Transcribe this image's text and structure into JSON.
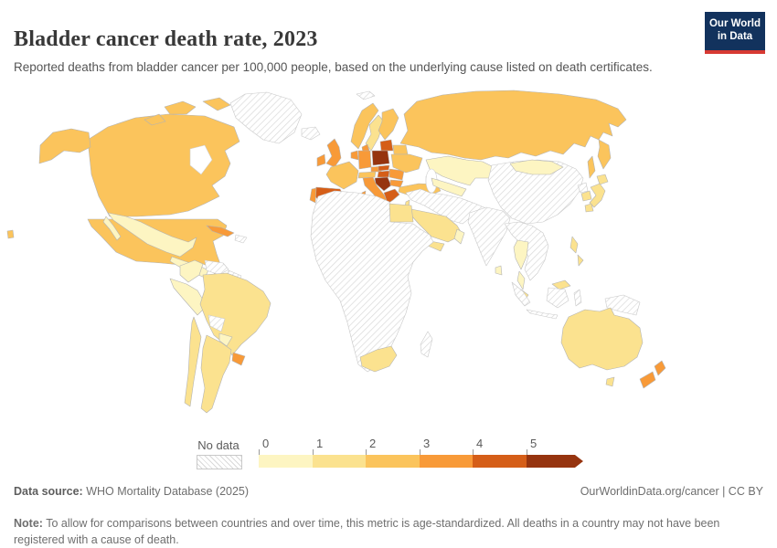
{
  "header": {
    "title": "Bladder cancer death rate, 2023",
    "subtitle": "Reported deaths from bladder cancer per 100,000 people, based on the underlying cause listed on death certificates."
  },
  "logo": {
    "line1": "Our World",
    "line2": "in Data",
    "background": "#12325d",
    "accent": "#d73a33"
  },
  "legend": {
    "no_data_label": "No data",
    "ticks": [
      "0",
      "1",
      "2",
      "3",
      "4",
      "5"
    ]
  },
  "footer": {
    "source_label": "Data source:",
    "source_text": " WHO Mortality Database (2025)",
    "right_text": "OurWorldinData.org/cancer | CC BY",
    "note_label": "Note:",
    "note_text": " To allow for comparisons between countries and over time, this metric is age-standardized. All deaths in a country may not have been registered with a cause of death."
  },
  "chart_data": {
    "type": "heatmap",
    "subtype": "choropleth-world-map",
    "title": "Bladder cancer death rate, 2023",
    "unit": "deaths per 100,000 people (age-standardized)",
    "legend_bins": [
      {
        "range": "0-1",
        "color": "#fdf5c2"
      },
      {
        "range": "1-2",
        "color": "#fbe28f"
      },
      {
        "range": "2-3",
        "color": "#fbc45c"
      },
      {
        "range": "3-4",
        "color": "#f89a38"
      },
      {
        "range": "4-5",
        "color": "#d55e18"
      },
      {
        "range": "5+",
        "color": "#96340f"
      },
      {
        "range": "no-data",
        "pattern": "hatched-gray"
      }
    ],
    "regions": {
      "greenland": {
        "label": "Greenland",
        "bin": "no-data"
      },
      "iceland": {
        "label": "Iceland",
        "bin": "no-data"
      },
      "svalbard": {
        "label": "Svalbard",
        "bin": "no-data"
      },
      "canada": {
        "label": "Canada",
        "bin": "2-3"
      },
      "usa": {
        "label": "United States",
        "bin": "2-3"
      },
      "mexico": {
        "label": "Mexico",
        "bin": "0-1"
      },
      "central-america": {
        "label": "Central America",
        "bin": "0-1"
      },
      "cuba": {
        "label": "Cuba",
        "bin": "3-4"
      },
      "hispaniola": {
        "label": "Haiti / Dominican Republic",
        "bin": "no-data"
      },
      "colombia": {
        "label": "Colombia",
        "bin": "0-1"
      },
      "venezuela": {
        "label": "Venezuela",
        "bin": "no-data"
      },
      "guyanas": {
        "label": "Guyana / Suriname",
        "bin": "no-data"
      },
      "peru-ecuador": {
        "label": "Peru / Ecuador",
        "bin": "0-1"
      },
      "brazil": {
        "label": "Brazil",
        "bin": "1-2"
      },
      "bolivia": {
        "label": "Bolivia",
        "bin": "no-data"
      },
      "paraguay": {
        "label": "Paraguay",
        "bin": "0-1"
      },
      "uruguay": {
        "label": "Uruguay",
        "bin": "3-4"
      },
      "argentina": {
        "label": "Argentina",
        "bin": "1-2"
      },
      "chile": {
        "label": "Chile",
        "bin": "1-2"
      },
      "uk": {
        "label": "United Kingdom",
        "bin": "3-4"
      },
      "ireland": {
        "label": "Ireland",
        "bin": "3-4"
      },
      "norway": {
        "label": "Norway",
        "bin": "2-3"
      },
      "sweden": {
        "label": "Sweden",
        "bin": "1-2"
      },
      "finland": {
        "label": "Finland",
        "bin": "2-3"
      },
      "denmark": {
        "label": "Denmark",
        "bin": "3-4"
      },
      "baltics": {
        "label": "Baltic states",
        "bin": "4-5"
      },
      "belarus": {
        "label": "Belarus",
        "bin": "2-3"
      },
      "poland": {
        "label": "Poland",
        "bin": "5+"
      },
      "germany": {
        "label": "Germany",
        "bin": "3-4"
      },
      "benelux": {
        "label": "Belgium / Netherlands",
        "bin": "3-4"
      },
      "france": {
        "label": "France",
        "bin": "2-3"
      },
      "spain": {
        "label": "Spain",
        "bin": "4-5"
      },
      "portugal": {
        "label": "Portugal",
        "bin": "3-4"
      },
      "czechia": {
        "label": "Czechia",
        "bin": "3-4"
      },
      "alpine": {
        "label": "Austria / Switzerland",
        "bin": "2-3"
      },
      "italy": {
        "label": "Italy",
        "bin": "3-4"
      },
      "slovakia": {
        "label": "Slovakia",
        "bin": "4-5"
      },
      "hungary": {
        "label": "Hungary",
        "bin": "4-5"
      },
      "balkans": {
        "label": "Serbia / Croatia / Bosnia",
        "bin": "5+"
      },
      "greece": {
        "label": "Greece",
        "bin": "4-5"
      },
      "romania": {
        "label": "Romania",
        "bin": "3-4"
      },
      "bulgaria": {
        "label": "Bulgaria",
        "bin": "3-4"
      },
      "ukraine": {
        "label": "Ukraine",
        "bin": "2-3"
      },
      "turkey": {
        "label": "Turkey",
        "bin": "2-3"
      },
      "caucasus": {
        "label": "Georgia / Azerbaijan",
        "bin": "no-data"
      },
      "armenia": {
        "label": "Armenia",
        "bin": "5+"
      },
      "russia": {
        "label": "Russia",
        "bin": "2-3"
      },
      "kazakhstan": {
        "label": "Kazakhstan",
        "bin": "0-1"
      },
      "central-asia": {
        "label": "Uzbekistan / Turkmenistan",
        "bin": "0-1"
      },
      "kyrgyzstan": {
        "label": "Kyrgyzstan",
        "bin": "2-3"
      },
      "middle-east": {
        "label": "Iran / Iraq / Syria / Afghanistan / Pakistan",
        "bin": "no-data"
      },
      "israel": {
        "label": "Israel",
        "bin": "1-2"
      },
      "saudi-arabia": {
        "label": "Saudi Arabia",
        "bin": "1-2"
      },
      "yemen": {
        "label": "Yemen",
        "bin": "1-2"
      },
      "oman": {
        "label": "Oman",
        "bin": "0-1"
      },
      "egypt": {
        "label": "Egypt",
        "bin": "1-2"
      },
      "africa": {
        "label": "Africa (most countries)",
        "bin": "no-data"
      },
      "south-africa": {
        "label": "South Africa",
        "bin": "1-2"
      },
      "madagascar": {
        "label": "Madagascar",
        "bin": "no-data"
      },
      "india": {
        "label": "India",
        "bin": "no-data"
      },
      "sri-lanka": {
        "label": "Sri Lanka",
        "bin": "0-1"
      },
      "china": {
        "label": "China",
        "bin": "no-data"
      },
      "mongolia": {
        "label": "Mongolia",
        "bin": "0-1"
      },
      "north-korea": {
        "label": "North Korea",
        "bin": "no-data"
      },
      "south-korea": {
        "label": "South Korea",
        "bin": "1-2"
      },
      "japan": {
        "label": "Japan",
        "bin": "1-2"
      },
      "se-asia": {
        "label": "Myanmar / Laos / Vietnam / Cambodia",
        "bin": "no-data"
      },
      "thailand": {
        "label": "Thailand",
        "bin": "0-1"
      },
      "malaysia": {
        "label": "Malaysia",
        "bin": "1-2"
      },
      "philippines": {
        "label": "Philippines",
        "bin": "1-2"
      },
      "indonesia": {
        "label": "Indonesia",
        "bin": "no-data"
      },
      "new-guinea": {
        "label": "Papua New Guinea",
        "bin": "no-data"
      },
      "australia": {
        "label": "Australia",
        "bin": "1-2"
      },
      "new-zealand": {
        "label": "New Zealand",
        "bin": "3-4"
      }
    }
  }
}
